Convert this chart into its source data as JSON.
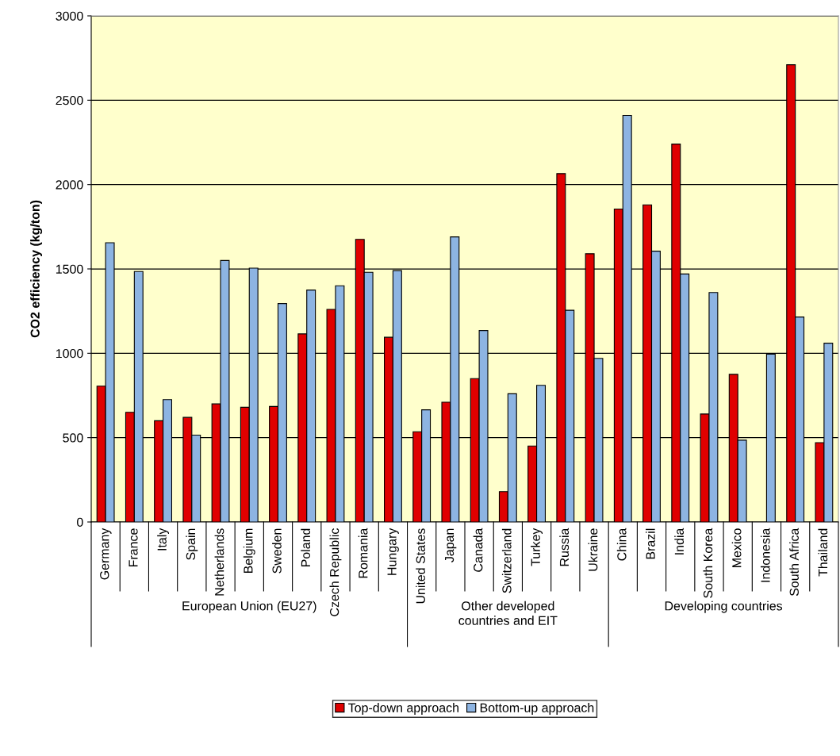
{
  "chart_data": {
    "type": "bar",
    "ylabel": "CO2 efficiency (kg/ton)",
    "categories": [
      "Germany",
      "France",
      "Italy",
      "Spain",
      "Netherlands",
      "Belgium",
      "Sweden",
      "Poland",
      "Czech Republic",
      "Romania",
      "Hungary",
      "United States",
      "Japan",
      "Canada",
      "Switzerland",
      "Turkey",
      "Russia",
      "Ukraine",
      "China",
      "Brazil",
      "India",
      "South Korea",
      "Mexico",
      "Indonesia",
      "South Africa",
      "Thailand"
    ],
    "series": [
      {
        "name": "Top-down approach",
        "color": "#e00000",
        "values": [
          805,
          650,
          600,
          620,
          700,
          680,
          685,
          1115,
          1260,
          1675,
          1095,
          535,
          710,
          850,
          180,
          450,
          2065,
          1590,
          1855,
          1880,
          2240,
          640,
          875,
          null,
          2710,
          470
        ]
      },
      {
        "name": "Bottom-up approach",
        "color": "#8db4e2",
        "values": [
          1655,
          1485,
          725,
          515,
          1550,
          1505,
          1295,
          1375,
          1400,
          1480,
          1490,
          665,
          1690,
          1135,
          760,
          810,
          1255,
          970,
          2410,
          1605,
          1470,
          1360,
          485,
          995,
          1215,
          1060
        ]
      }
    ],
    "annotations": [
      "European Union (EU27)",
      "Other developed\ncountries and EIT",
      "Developing countries"
    ],
    "ylim": [
      0,
      3000
    ],
    "yticks": [
      0,
      500,
      1000,
      1500,
      2000,
      2500,
      3000
    ],
    "grid": "y",
    "legend": "bottom"
  }
}
